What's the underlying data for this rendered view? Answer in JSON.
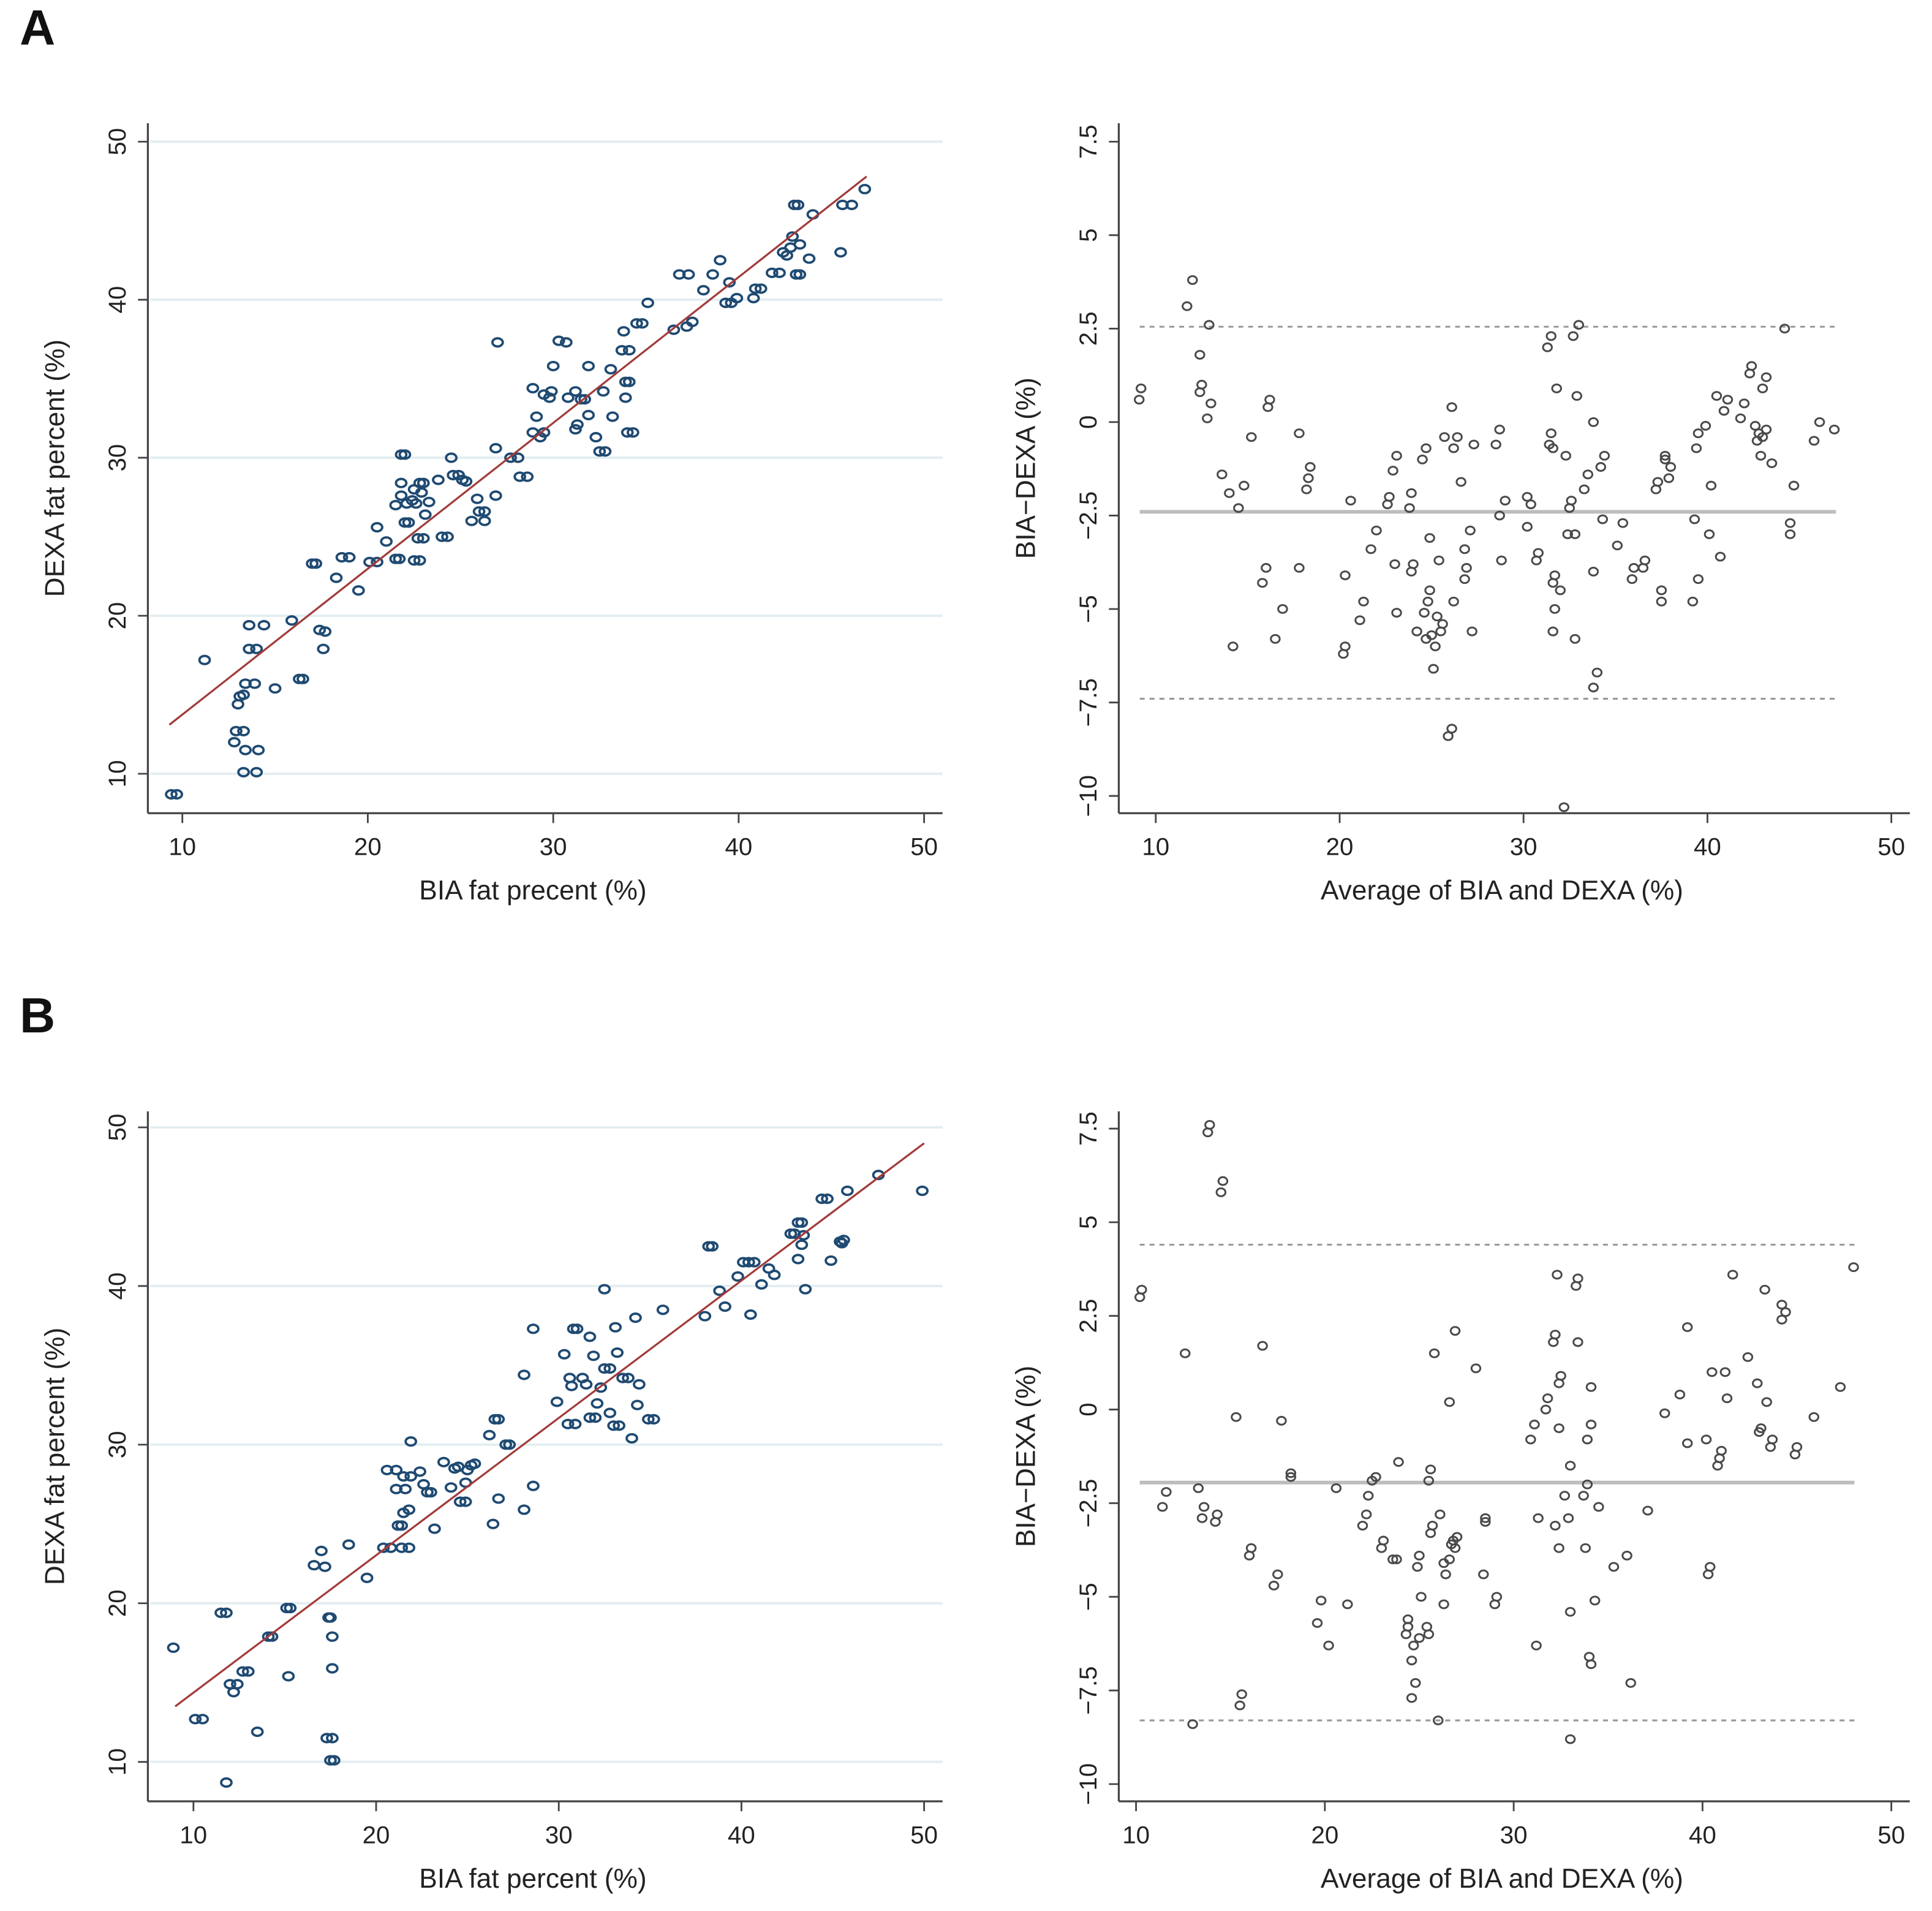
{
  "panels": [
    {
      "label": "A"
    },
    {
      "label": "B"
    }
  ],
  "colors": {
    "scatter_point": "#1f4a72",
    "fit_line": "#a23a3a",
    "ba_point": "#4a4a4a",
    "ref_line": "#bdbdbd",
    "grid": "#e4eef2",
    "axis": "#444444"
  },
  "chart_data": [
    {
      "type": "scatter",
      "panel": "A",
      "title": "",
      "xlabel": "BIA  fat precent (%)",
      "ylabel": "DEXA  fat percent (%)",
      "xlim": [
        8,
        52
      ],
      "ylim": [
        8,
        51
      ],
      "xticks": [
        "10",
        "20",
        "30",
        "40",
        "50"
      ],
      "yticks": [
        "10",
        "20",
        "30",
        "40",
        "50"
      ],
      "grid": true,
      "fit_line": [
        [
          9.3,
          13.1
        ],
        [
          46.9,
          47.8
        ]
      ],
      "x": [
        9.4,
        9.7,
        11.2,
        12.8,
        12.9,
        13.3,
        13.0,
        13.1,
        13.3,
        13.4,
        13.9,
        13.4,
        14.1,
        13.3,
        14.0,
        13.6,
        14.0,
        13.6,
        14.4,
        15.0,
        15.9,
        16.5,
        16.3,
        17.0,
        17.2,
        17.4,
        17.7,
        17.6,
        18.3,
        18.6,
        19.0,
        19.5,
        20.1,
        20.5,
        20.5,
        21.0,
        21.5,
        21.7,
        21.5,
        21.8,
        21.8,
        21.8,
        22.0,
        22.0,
        22.2,
        22.1,
        22.4,
        22.5,
        22.6,
        22.8,
        22.9,
        23.0,
        22.5,
        22.8,
        22.7,
        23.0,
        23.1,
        23.3,
        23.8,
        24.0,
        24.3,
        24.5,
        24.6,
        24.9,
        25.1,
        25.3,
        25.6,
        25.9,
        26.0,
        26.3,
        26.3,
        26.9,
        26.9,
        27.0,
        27.7,
        28.1,
        28.2,
        28.6,
        28.9,
        29.1,
        28.9,
        29.3,
        29.5,
        29.5,
        29.8,
        29.9,
        30.0,
        30.3,
        30.7,
        30.8,
        31.2,
        31.2,
        31.5,
        31.3,
        31.7,
        31.9,
        31.9,
        32.3,
        32.5,
        32.7,
        32.8,
        33.1,
        33.2,
        33.7,
        33.8,
        33.9,
        33.9,
        34.1,
        34.0,
        34.3,
        34.1,
        34.5,
        34.8,
        35.1,
        36.5,
        36.8,
        37.3,
        37.2,
        37.5,
        38.1,
        38.6,
        39.0,
        39.3,
        39.6,
        39.5,
        39.9,
        40.8,
        40.9,
        41.2,
        41.8,
        42.2,
        42.4,
        42.6,
        42.8,
        42.9,
        43.0,
        43.2,
        43.1,
        43.3,
        43.3,
        43.8,
        44.0,
        45.5,
        45.6,
        46.1,
        46.8
      ],
      "y": [
        8.7,
        8.7,
        17.2,
        12.0,
        12.7,
        12.7,
        14.4,
        14.9,
        15.0,
        15.7,
        15.7,
        11.5,
        11.5,
        10.1,
        10.1,
        17.9,
        17.9,
        19.4,
        19.4,
        15.4,
        19.7,
        16.0,
        16.0,
        23.3,
        23.3,
        19.1,
        19.0,
        17.9,
        22.4,
        23.7,
        23.7,
        21.6,
        23.4,
        23.4,
        25.6,
        24.7,
        23.6,
        23.6,
        27.0,
        27.6,
        28.4,
        30.2,
        30.2,
        25.9,
        25.9,
        27.1,
        27.3,
        28.0,
        27.1,
        28.4,
        27.8,
        28.4,
        23.5,
        23.5,
        24.9,
        24.9,
        26.4,
        27.2,
        28.6,
        25.0,
        25.0,
        30.0,
        28.9,
        28.9,
        28.6,
        28.5,
        26.0,
        27.4,
        26.6,
        26.6,
        26.0,
        30.6,
        27.6,
        37.3,
        30.0,
        30.0,
        28.8,
        28.8,
        34.4,
        32.6,
        31.6,
        31.3,
        31.6,
        34.0,
        33.8,
        34.2,
        35.8,
        37.4,
        37.3,
        33.8,
        34.2,
        31.8,
        33.7,
        32.1,
        33.7,
        35.8,
        32.7,
        31.3,
        30.4,
        34.2,
        30.4,
        35.6,
        32.6,
        36.8,
        38.0,
        34.8,
        33.8,
        34.8,
        31.6,
        31.6,
        36.8,
        38.5,
        38.5,
        39.8,
        38.1,
        41.6,
        41.6,
        38.3,
        38.6,
        40.6,
        41.6,
        42.5,
        39.8,
        39.8,
        41.1,
        40.1,
        40.1,
        40.7,
        40.7,
        41.7,
        41.7,
        43.0,
        42.8,
        43.3,
        44.0,
        46.0,
        46.0,
        41.6,
        41.6,
        43.5,
        42.6,
        45.4,
        43.0,
        46.0,
        46.0,
        47.0
      ]
    },
    {
      "type": "scatter",
      "subtype": "bland-altman",
      "panel": "A",
      "title": "",
      "xlabel": "Average of BIA and DEXA (%)",
      "ylabel": "BIA−DEXA (%)",
      "xlim": [
        8,
        52
      ],
      "ylim": [
        -10.5,
        8.1
      ],
      "xticks": [
        "10",
        "20",
        "30",
        "40",
        "50"
      ],
      "yticks": [
        "−10",
        "−7.5",
        "−5",
        "−2.5",
        "0",
        "2.5",
        "5",
        "7.5"
      ],
      "ytick_values": [
        -10,
        -7.5,
        -5,
        -2.5,
        0,
        2.5,
        5,
        7.5
      ],
      "mean_difference": -2.4,
      "upper_limit": 2.55,
      "lower_limit": -7.4,
      "x": [
        9.1,
        9.2,
        11.7,
        12.0,
        12.4,
        12.5,
        12.4,
        12.9,
        12.8,
        13.0,
        13.6,
        14.0,
        14.2,
        14.5,
        14.8,
        15.2,
        15.8,
        16.0,
        16.1,
        16.2,
        16.5,
        16.9,
        17.8,
        17.8,
        18.2,
        18.3,
        18.4,
        20.2,
        20.3,
        20.3,
        20.6,
        21.1,
        21.3,
        21.7,
        22.0,
        22.6,
        22.7,
        22.9,
        23.0,
        23.1,
        23.1,
        23.8,
        23.9,
        23.9,
        24.0,
        24.2,
        24.5,
        24.6,
        24.7,
        24.7,
        24.8,
        24.9,
        24.9,
        25.0,
        25.1,
        25.2,
        25.3,
        25.4,
        25.5,
        25.6,
        25.7,
        25.9,
        26.1,
        26.1,
        26.2,
        26.2,
        26.4,
        26.6,
        26.8,
        26.8,
        26.9,
        27.1,
        27.2,
        27.3,
        28.5,
        28.7,
        28.7,
        28.8,
        29.0,
        30.2,
        30.2,
        30.4,
        30.7,
        30.8,
        31.3,
        31.4,
        31.5,
        31.5,
        31.6,
        31.6,
        31.7,
        31.7,
        31.8,
        31.6,
        32.0,
        32.2,
        32.3,
        32.4,
        32.5,
        32.6,
        32.7,
        32.8,
        32.8,
        32.9,
        33.0,
        33.3,
        33.5,
        33.8,
        33.8,
        33.8,
        34.0,
        34.2,
        34.3,
        34.4,
        35.1,
        35.4,
        35.9,
        36.0,
        36.5,
        36.6,
        37.2,
        37.3,
        37.5,
        37.5,
        37.7,
        37.7,
        37.9,
        38.0,
        39.2,
        39.3,
        39.4,
        39.5,
        39.5,
        39.9,
        40.1,
        40.2,
        40.5,
        40.7,
        40.9,
        41.1,
        41.8,
        42.0,
        42.3,
        42.4,
        42.6,
        42.7,
        42.8,
        42.9,
        43.0,
        43.0,
        43.2,
        43.2,
        43.5,
        44.2,
        44.5,
        44.5,
        44.7,
        45.8,
        46.1,
        46.9
      ],
      "y": [
        0.6,
        0.9,
        3.1,
        3.8,
        1.8,
        1.0,
        0.8,
        2.6,
        0.1,
        0.5,
        -1.4,
        -1.9,
        -6.0,
        -2.3,
        -1.7,
        -0.4,
        -4.3,
        -3.9,
        0.4,
        0.6,
        -5.8,
        -5.0,
        -0.3,
        -3.9,
        -1.8,
        -1.5,
        -1.2,
        -6.2,
        -6.0,
        -4.1,
        -2.1,
        -5.3,
        -4.8,
        -3.4,
        -2.9,
        -2.2,
        -2.0,
        -1.3,
        -3.8,
        -0.9,
        -5.1,
        -2.3,
        -1.9,
        -4.0,
        -3.8,
        -5.6,
        -1.0,
        -5.1,
        -0.7,
        -5.8,
        -4.8,
        -4.5,
        -3.1,
        -5.7,
        -6.6,
        -6.0,
        -5.2,
        -3.7,
        -5.6,
        -5.4,
        -0.4,
        -8.4,
        -8.2,
        0.4,
        -4.8,
        -0.7,
        -0.4,
        -1.6,
        -3.4,
        -4.2,
        -3.9,
        -2.9,
        -5.6,
        -0.6,
        -0.6,
        -0.2,
        -2.5,
        -3.7,
        -2.1,
        -2.0,
        -2.8,
        -2.2,
        -3.7,
        -3.5,
        2.0,
        -0.6,
        2.3,
        -0.3,
        -4.3,
        -5.6,
        -4.1,
        -5.0,
        0.9,
        -0.7,
        -4.5,
        -10.3,
        -0.9,
        -3.0,
        -2.3,
        -2.1,
        2.3,
        -3.0,
        -5.8,
        0.7,
        2.6,
        -1.8,
        -1.4,
        0.0,
        -4.0,
        -7.1,
        -6.7,
        -1.2,
        -2.6,
        -0.9,
        -3.3,
        -2.7,
        -4.2,
        -3.9,
        -3.9,
        -3.7,
        -1.8,
        -1.6,
        -4.8,
        -4.5,
        -0.9,
        -1.0,
        -1.5,
        -1.2,
        -4.8,
        -2.6,
        -0.7,
        -0.3,
        -4.2,
        -0.1,
        -3.0,
        -1.7,
        0.7,
        -3.6,
        0.3,
        0.6,
        0.1,
        0.5,
        1.3,
        1.5,
        -0.1,
        -0.5,
        -0.3,
        -0.9,
        -0.4,
        0.9,
        1.2,
        -0.2,
        -1.1,
        2.5,
        -3.0,
        -2.7,
        -1.7,
        -0.5,
        0.0,
        -0.2
      ]
    },
    {
      "type": "scatter",
      "panel": "B",
      "title": "",
      "xlabel": "BIA  fat percent (%)",
      "ylabel": "DEXA  fat percent (%)",
      "xlim": [
        7.5,
        51
      ],
      "ylim": [
        8,
        51
      ],
      "xticks": [
        "10",
        "20",
        "30",
        "40",
        "50"
      ],
      "yticks": [
        "10",
        "20",
        "30",
        "40",
        "50"
      ],
      "grid": true,
      "fit_line": [
        [
          9.0,
          13.5
        ],
        [
          50.0,
          49.0
        ]
      ],
      "x": [
        8.9,
        10.1,
        10.5,
        11.5,
        11.8,
        11.8,
        12.0,
        12.2,
        12.4,
        12.7,
        13.0,
        13.5,
        14.1,
        14.3,
        15.1,
        15.3,
        15.2,
        16.6,
        17.0,
        17.2,
        17.4,
        17.5,
        17.3,
        17.6,
        17.5,
        17.7,
        17.6,
        17.6,
        18.5,
        19.5,
        20.4,
        20.8,
        20.6,
        21.1,
        21.1,
        21.6,
        21.2,
        21.4,
        21.4,
        21.8,
        21.5,
        21.8,
        21.5,
        21.9,
        21.9,
        22.4,
        22.6,
        22.8,
        23.0,
        23.2,
        23.7,
        24.1,
        24.3,
        24.5,
        24.6,
        24.9,
        24.9,
        25.0,
        25.2,
        25.4,
        26.2,
        26.4,
        26.5,
        26.7,
        26.7,
        27.1,
        27.3,
        28.1,
        28.1,
        28.6,
        28.6,
        29.9,
        30.3,
        30.5,
        30.6,
        30.7,
        30.8,
        30.9,
        31.0,
        31.3,
        31.5,
        31.7,
        31.7,
        31.9,
        32.0,
        32.1,
        32.3,
        32.5,
        32.5,
        32.8,
        32.8,
        33.0,
        33.2,
        33.1,
        33.3,
        33.5,
        33.8,
        34.0,
        34.2,
        34.3,
        34.4,
        34.9,
        35.2,
        35.7,
        38.0,
        38.2,
        38.4,
        38.8,
        39.1,
        39.8,
        40.1,
        40.4,
        40.5,
        40.7,
        41.1,
        41.5,
        41.8,
        42.7,
        42.9,
        43.1,
        43.1,
        43.3,
        43.3,
        43.4,
        43.5,
        44.4,
        44.7,
        44.9,
        45.4,
        45.5,
        45.6,
        45.8,
        47.5,
        49.9
      ],
      "y": [
        17.2,
        12.7,
        12.7,
        19.4,
        19.4,
        8.7,
        14.9,
        14.4,
        14.9,
        15.7,
        15.7,
        11.9,
        17.9,
        17.9,
        19.7,
        19.7,
        15.4,
        22.4,
        23.3,
        22.3,
        19.1,
        19.1,
        11.5,
        11.5,
        10.1,
        10.1,
        17.9,
        15.9,
        23.7,
        21.6,
        23.5,
        23.5,
        28.4,
        28.4,
        27.2,
        27.2,
        24.9,
        24.9,
        23.5,
        23.5,
        25.7,
        25.9,
        28.0,
        28.0,
        30.2,
        28.3,
        27.5,
        27.0,
        27.0,
        24.7,
        28.9,
        27.3,
        28.5,
        28.6,
        26.4,
        26.4,
        27.6,
        28.4,
        28.7,
        28.8,
        30.6,
        25.0,
        31.6,
        31.6,
        26.6,
        30.0,
        30.0,
        25.9,
        34.4,
        37.3,
        27.4,
        32.7,
        35.7,
        31.3,
        34.2,
        33.7,
        37.3,
        31.3,
        37.3,
        34.2,
        33.8,
        31.7,
        36.8,
        35.6,
        31.7,
        32.6,
        33.6,
        39.8,
        34.8,
        34.8,
        32.0,
        31.2,
        35.8,
        37.4,
        31.2,
        34.2,
        34.2,
        30.4,
        38.0,
        32.5,
        33.8,
        31.6,
        31.6,
        38.5,
        38.1,
        42.5,
        42.5,
        39.7,
        38.7,
        40.6,
        41.5,
        41.5,
        38.2,
        41.5,
        40.1,
        41.1,
        40.7,
        43.3,
        43.3,
        41.7,
        44.0,
        44.0,
        42.6,
        43.2,
        39.8,
        45.5,
        45.5,
        41.6,
        42.8,
        42.7,
        42.9,
        46.0,
        47.0,
        46.0
      ]
    },
    {
      "type": "scatter",
      "subtype": "bland-altman",
      "panel": "B",
      "title": "",
      "xlabel": "Average of BIA and DEXA (%)",
      "ylabel": "BIA−DEXA (%)",
      "xlim": [
        9,
        52
      ],
      "ylim": [
        -10.5,
        8.1
      ],
      "xticks": [
        "10",
        "20",
        "30",
        "40",
        "50"
      ],
      "yticks": [
        "−10",
        "−7.5",
        "−5",
        "−2.5",
        "0",
        "2.5",
        "5",
        "7.5"
      ],
      "ytick_values": [
        -10,
        -7.5,
        -5,
        -2.5,
        0,
        2.5,
        5,
        7.5
      ],
      "mean_difference": -1.95,
      "upper_limit": 4.4,
      "lower_limit": -8.3,
      "x": [
        10.2,
        10.3,
        11.4,
        11.6,
        12.6,
        13.0,
        13.3,
        13.5,
        13.6,
        13.8,
        13.9,
        14.2,
        14.3,
        14.5,
        14.6,
        15.3,
        15.5,
        15.6,
        16.0,
        16.1,
        16.7,
        17.3,
        17.5,
        17.7,
        18.2,
        18.2,
        19.6,
        19.8,
        20.2,
        20.6,
        21.2,
        22.0,
        22.2,
        22.3,
        22.5,
        22.7,
        23.0,
        23.1,
        23.6,
        23.8,
        23.9,
        24.3,
        24.4,
        24.4,
        24.6,
        24.6,
        24.7,
        24.8,
        24.9,
        25.0,
        25.0,
        25.1,
        25.4,
        25.5,
        25.5,
        25.6,
        25.6,
        25.7,
        25.8,
        26.0,
        26.1,
        26.3,
        26.3,
        26.4,
        26.6,
        26.6,
        26.7,
        26.8,
        26.9,
        26.9,
        27.0,
        28.0,
        28.4,
        28.5,
        28.5,
        29.0,
        29.1,
        30.9,
        31.1,
        31.2,
        31.3,
        31.7,
        31.8,
        32.1,
        32.2,
        32.2,
        32.3,
        32.4,
        32.4,
        32.4,
        32.5,
        32.7,
        32.9,
        33.0,
        33.0,
        33.0,
        33.3,
        33.4,
        33.4,
        33.7,
        33.8,
        33.9,
        33.9,
        34.0,
        34.1,
        34.1,
        34.1,
        34.3,
        34.5,
        35.3,
        36.0,
        36.2,
        37.1,
        38.0,
        38.8,
        39.2,
        39.2,
        40.2,
        40.3,
        40.4,
        40.5,
        40.8,
        40.9,
        41.0,
        41.2,
        41.3,
        41.6,
        42.4,
        42.9,
        43.0,
        43.1,
        43.3,
        43.4,
        43.6,
        43.7,
        44.2,
        44.2,
        44.4,
        44.9,
        45.0,
        45.9,
        47.3,
        48.0
      ],
      "y": [
        3.0,
        3.2,
        -2.6,
        -2.2,
        1.5,
        -8.4,
        -2.1,
        -2.9,
        -2.6,
        7.4,
        7.6,
        -3.0,
        -2.8,
        5.8,
        6.1,
        -0.2,
        -7.9,
        -7.6,
        -3.9,
        -3.7,
        1.7,
        -4.7,
        -4.4,
        -0.3,
        -1.7,
        -1.8,
        -5.7,
        -5.1,
        -6.3,
        -2.1,
        -5.2,
        -3.1,
        -2.8,
        -2.3,
        -1.9,
        -1.8,
        -3.7,
        -3.5,
        -4.0,
        -4.0,
        -1.4,
        -6.0,
        -5.6,
        -5.8,
        -7.7,
        -6.7,
        -6.3,
        -7.3,
        -4.2,
        -6.1,
        -3.9,
        -5.0,
        -5.8,
        -6.0,
        -1.9,
        -1.6,
        -3.3,
        -3.1,
        1.5,
        -8.3,
        -2.8,
        -5.2,
        -4.1,
        -4.4,
        -4.0,
        0.2,
        -3.6,
        -3.5,
        -3.7,
        2.1,
        -3.4,
        1.1,
        -4.4,
        -2.9,
        -3.0,
        -5.2,
        -5.0,
        -0.8,
        -0.4,
        -6.3,
        -2.9,
        0.0,
        0.3,
        1.8,
        2.0,
        -3.1,
        3.6,
        -3.7,
        -0.5,
        0.7,
        0.9,
        -2.3,
        -2.9,
        -1.5,
        -5.4,
        -8.8,
        3.3,
        3.5,
        1.8,
        -2.3,
        -3.7,
        -0.8,
        -2.0,
        -6.6,
        -6.8,
        -0.4,
        0.6,
        -5.1,
        -2.6,
        -4.2,
        -3.9,
        -7.3,
        -2.7,
        -0.1,
        0.4,
        2.2,
        -0.9,
        -0.8,
        -4.4,
        -4.2,
        1.0,
        -1.5,
        -1.3,
        -1.1,
        1.0,
        0.3,
        3.6,
        1.4,
        0.7,
        -0.6,
        -0.5,
        3.2,
        0.2,
        -1.0,
        -0.8,
        2.4,
        2.8,
        2.6,
        -1.2,
        -1.0,
        -0.2,
        0.6,
        3.8
      ]
    }
  ]
}
